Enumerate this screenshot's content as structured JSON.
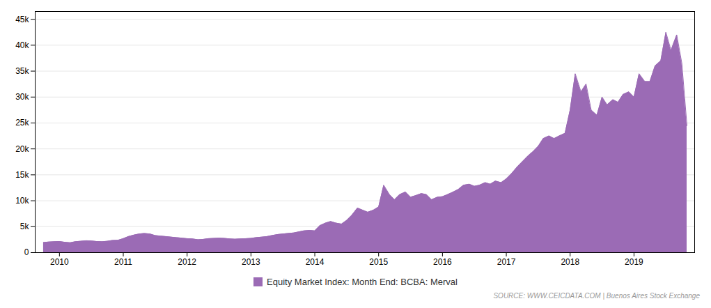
{
  "chart_data": {
    "type": "area",
    "x": [
      2009.75,
      2009.83,
      2009.92,
      2010.0,
      2010.08,
      2010.17,
      2010.25,
      2010.33,
      2010.42,
      2010.5,
      2010.58,
      2010.67,
      2010.75,
      2010.83,
      2010.92,
      2011.0,
      2011.08,
      2011.17,
      2011.25,
      2011.33,
      2011.42,
      2011.5,
      2011.58,
      2011.67,
      2011.75,
      2011.83,
      2011.92,
      2012.0,
      2012.08,
      2012.17,
      2012.25,
      2012.33,
      2012.42,
      2012.5,
      2012.58,
      2012.67,
      2012.75,
      2012.83,
      2012.92,
      2013.0,
      2013.08,
      2013.17,
      2013.25,
      2013.33,
      2013.42,
      2013.5,
      2013.58,
      2013.67,
      2013.75,
      2013.83,
      2013.92,
      2014.0,
      2014.08,
      2014.17,
      2014.25,
      2014.33,
      2014.42,
      2014.5,
      2014.58,
      2014.67,
      2014.75,
      2014.83,
      2014.92,
      2015.0,
      2015.08,
      2015.17,
      2015.25,
      2015.33,
      2015.42,
      2015.5,
      2015.58,
      2015.67,
      2015.75,
      2015.83,
      2015.92,
      2016.0,
      2016.08,
      2016.17,
      2016.25,
      2016.33,
      2016.42,
      2016.5,
      2016.58,
      2016.67,
      2016.75,
      2016.83,
      2016.92,
      2017.0,
      2017.08,
      2017.17,
      2017.25,
      2017.33,
      2017.42,
      2017.5,
      2017.58,
      2017.67,
      2017.75,
      2017.83,
      2017.92,
      2018.0,
      2018.08,
      2018.17,
      2018.25,
      2018.33,
      2018.42,
      2018.5,
      2018.58,
      2018.67,
      2018.75,
      2018.83,
      2018.92,
      2019.0,
      2019.08,
      2019.17,
      2019.25,
      2019.33,
      2019.42,
      2019.5,
      2019.58,
      2019.67,
      2019.75,
      2019.83
    ],
    "series": [
      {
        "name": "Equity Market Index: Month End: BCBA: Merval",
        "color": "#9b6bb5",
        "values": [
          1950,
          2050,
          2100,
          2150,
          2000,
          1900,
          2100,
          2200,
          2300,
          2250,
          2150,
          2100,
          2200,
          2350,
          2400,
          2700,
          3100,
          3400,
          3600,
          3700,
          3600,
          3300,
          3200,
          3100,
          3000,
          2900,
          2800,
          2700,
          2650,
          2500,
          2550,
          2700,
          2750,
          2800,
          2750,
          2650,
          2600,
          2650,
          2700,
          2750,
          2900,
          3000,
          3100,
          3300,
          3500,
          3600,
          3700,
          3800,
          4000,
          4200,
          4300,
          4200,
          5200,
          5700,
          6000,
          5700,
          5500,
          6200,
          7200,
          8600,
          8200,
          7800,
          8200,
          8800,
          13000,
          11200,
          10200,
          11200,
          11700,
          10700,
          11000,
          11400,
          11200,
          10200,
          10700,
          10800,
          11200,
          11700,
          12200,
          13000,
          13200,
          12800,
          13000,
          13500,
          13200,
          13800,
          13500,
          14200,
          15200,
          16500,
          17500,
          18500,
          19500,
          20500,
          22000,
          22500,
          22000,
          22500,
          23000,
          27500,
          34500,
          31000,
          32500,
          27500,
          26500,
          30000,
          28500,
          29500,
          29000,
          30500,
          31000,
          30000,
          34500,
          33000,
          33000,
          36000,
          37000,
          42500,
          39000,
          42000,
          36500,
          24500
        ]
      }
    ],
    "xlim": [
      2009.62,
      2019.95
    ],
    "xticks": [
      2010,
      2011,
      2012,
      2013,
      2014,
      2015,
      2016,
      2017,
      2018,
      2019
    ],
    "ylim": [
      0,
      46500
    ],
    "yticks": [
      0,
      {
        "value": 5000,
        "label": "5k"
      },
      {
        "value": 10000,
        "label": "10k"
      },
      {
        "value": 15000,
        "label": "15k"
      },
      {
        "value": 20000,
        "label": "20k"
      },
      {
        "value": 25000,
        "label": "25k"
      },
      {
        "value": 30000,
        "label": "30k"
      },
      {
        "value": 35000,
        "label": "35k"
      },
      {
        "value": 40000,
        "label": "40k"
      },
      {
        "value": 45000,
        "label": "45k"
      }
    ],
    "grid": true,
    "legend": "bottom",
    "annotations": [
      "SOURCE: WWW.CEICDATA.COM | Buenos Aires Stock Exchange"
    ]
  }
}
